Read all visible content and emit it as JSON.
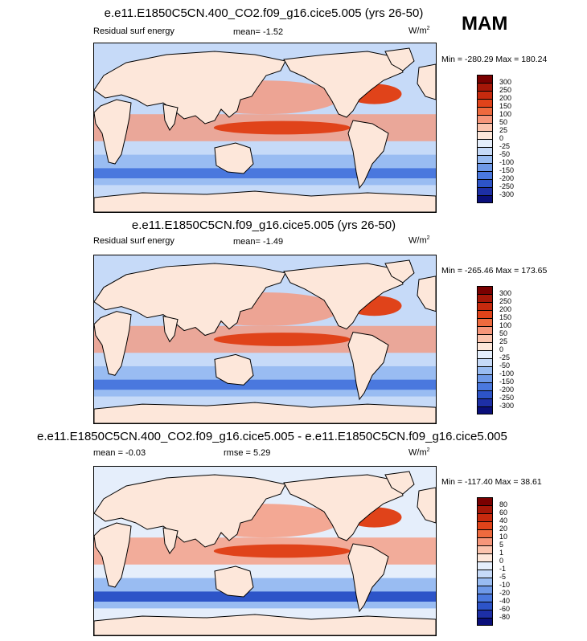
{
  "season": "MAM",
  "panels": [
    {
      "title": "e.e11.E1850C5CN.400_CO2.f09_g16.cice5.005 (yrs 26-50)",
      "variable": "Residual surf energy",
      "stat1": "mean=  -1.52",
      "stat2": "",
      "units": "W/m",
      "units_sup": "2",
      "minmax": "Min = -280.29 Max = 180.24",
      "levels": [
        "300",
        "250",
        "200",
        "150",
        "100",
        "50",
        "25",
        "0",
        "-25",
        "-50",
        "-100",
        "-150",
        "-200",
        "-250",
        "-300"
      ],
      "colors": [
        "#7a0000",
        "#a61708",
        "#c72a0e",
        "#e0431a",
        "#ee6a3e",
        "#f6967a",
        "#fbc4ae",
        "#fde7da",
        "#e5eefb",
        "#c6daf8",
        "#99bcf2",
        "#6e99e8",
        "#4a78de",
        "#2d54c8",
        "#1d2fa6",
        "#0a0f7a"
      ],
      "map": {
        "ocean": "#c6daf8",
        "land": "#fde7da",
        "warm": "#f6967a",
        "hot": "#e0431a",
        "cool": "#99bcf2",
        "cold": "#4a78de"
      }
    },
    {
      "title": "e.e11.E1850C5CN.f09_g16.cice5.005 (yrs 26-50)",
      "variable": "Residual surf energy",
      "stat1": "mean=  -1.49",
      "stat2": "",
      "units": "W/m",
      "units_sup": "2",
      "minmax": "Min = -265.46 Max = 173.65",
      "levels": [
        "300",
        "250",
        "200",
        "150",
        "100",
        "50",
        "25",
        "0",
        "-25",
        "-50",
        "-100",
        "-150",
        "-200",
        "-250",
        "-300"
      ],
      "colors": [
        "#7a0000",
        "#a61708",
        "#c72a0e",
        "#e0431a",
        "#ee6a3e",
        "#f6967a",
        "#fbc4ae",
        "#fde7da",
        "#e5eefb",
        "#c6daf8",
        "#99bcf2",
        "#6e99e8",
        "#4a78de",
        "#2d54c8",
        "#1d2fa6",
        "#0a0f7a"
      ],
      "map": {
        "ocean": "#c6daf8",
        "land": "#fde7da",
        "warm": "#f6967a",
        "hot": "#e0431a",
        "cool": "#99bcf2",
        "cold": "#4a78de"
      }
    },
    {
      "title": "e.e11.E1850C5CN.400_CO2.f09_g16.cice5.005 - e.e11.E1850C5CN.f09_g16.cice5.005",
      "variable": "",
      "stat1": "mean =  -0.03",
      "stat2": "rmse =   5.29",
      "units": "W/m",
      "units_sup": "2",
      "minmax": "Min = -117.40 Max =  38.61",
      "levels": [
        "80",
        "60",
        "40",
        "20",
        "10",
        "5",
        "1",
        "0",
        "-1",
        "-5",
        "-10",
        "-20",
        "-40",
        "-60",
        "-80"
      ],
      "colors": [
        "#7a0000",
        "#a61708",
        "#c72a0e",
        "#e0431a",
        "#ee6a3e",
        "#f6967a",
        "#fbc4ae",
        "#fde7da",
        "#e5eefb",
        "#c6daf8",
        "#99bcf2",
        "#6e99e8",
        "#4a78de",
        "#2d54c8",
        "#1d2fa6",
        "#0a0f7a"
      ],
      "map": {
        "ocean": "#e5eefb",
        "land": "#fde7da",
        "warm": "#f6967a",
        "hot": "#e0431a",
        "cool": "#99bcf2",
        "cold": "#2d54c8"
      }
    }
  ]
}
